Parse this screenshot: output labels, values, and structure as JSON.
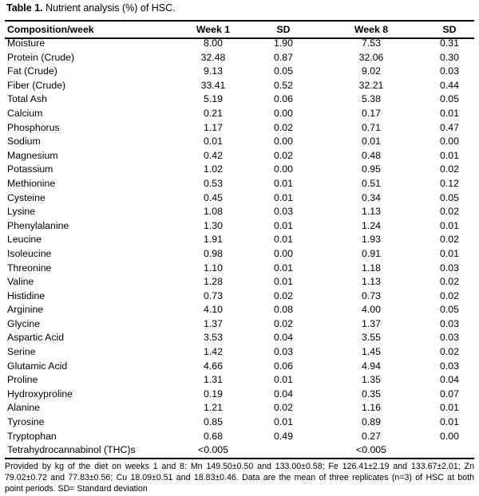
{
  "caption": {
    "label": "Table 1.",
    "text": " Nutrient analysis (%) of HSC."
  },
  "headers": [
    "Composition/week",
    "Week 1",
    "SD",
    "Week 8",
    "SD"
  ],
  "rows": [
    [
      "Moisture",
      "8.00",
      "1.90",
      "7.53",
      "0.31"
    ],
    [
      "Protein (Crude)",
      "32.48",
      "0.87",
      "32.06",
      "0.30"
    ],
    [
      "Fat (Crude)",
      "9.13",
      "0.05",
      "9.02",
      "0.03"
    ],
    [
      "Fiber (Crude)",
      "33.41",
      "0.52",
      "32.21",
      "0.44"
    ],
    [
      "Total Ash",
      "5.19",
      "0.06",
      "5.38",
      "0.05"
    ],
    [
      "Calcium",
      "0.21",
      "0.00",
      "0.17",
      "0.01"
    ],
    [
      "Phosphorus",
      "1.17",
      "0.02",
      "0.71",
      "0.47"
    ],
    [
      "Sodium",
      "0.01",
      "0.00",
      "0.01",
      "0.00"
    ],
    [
      "Magnesium",
      "0.42",
      "0.02",
      "0.48",
      "0.01"
    ],
    [
      "Potassium",
      "1.02",
      "0.00",
      "0.95",
      "0.02"
    ],
    [
      "Methionine",
      "0.53",
      "0.01",
      "0.51",
      "0.12"
    ],
    [
      "Cysteine",
      "0.45",
      "0.01",
      "0.34",
      "0.05"
    ],
    [
      "Lysine",
      "1.08",
      "0.03",
      "1.13",
      "0.02"
    ],
    [
      "Phenylalanine",
      "1.30",
      "0.01",
      "1.24",
      "0.01"
    ],
    [
      "Leucine",
      "1.91",
      "0.01",
      "1.93",
      "0.02"
    ],
    [
      "Isoleucine",
      "0.98",
      "0.00",
      "0.91",
      "0.01"
    ],
    [
      "Threonine",
      "1.10",
      "0.01",
      "1.18",
      "0.03"
    ],
    [
      "Valine",
      "1.28",
      "0.01",
      "1.13",
      "0.02"
    ],
    [
      "Histidine",
      "0.73",
      "0.02",
      "0.73",
      "0.02"
    ],
    [
      "Arginine",
      "4.10",
      "0.08",
      "4.00",
      "0.05"
    ],
    [
      "Glycine",
      "1.37",
      "0.02",
      "1.37",
      "0.03"
    ],
    [
      "Aspartic Acid",
      "3.53",
      "0.04",
      "3.55",
      "0.03"
    ],
    [
      "Serine",
      "1.42",
      "0.03",
      "1.45",
      "0.02"
    ],
    [
      "Glutamic Acid",
      "4.66",
      "0.06",
      "4.94",
      "0.03"
    ],
    [
      "Proline",
      "1.31",
      "0.01",
      "1.35",
      "0.04"
    ],
    [
      "Hydroxyproline",
      "0.19",
      "0.04",
      "0.35",
      "0.07"
    ],
    [
      "Alanine",
      "1.21",
      "0.02",
      "1.16",
      "0.01"
    ],
    [
      "Tyrosine",
      "0.85",
      "0.01",
      "0.89",
      "0.01"
    ],
    [
      "Tryptophan",
      "0.68",
      "0.49",
      "0.27",
      "0.00"
    ],
    [
      "Tetrahydrocannabinol (THC)s",
      "<0.005",
      "",
      "<0.005",
      ""
    ]
  ],
  "footnote": "Provided by kg of the diet on weeks 1 and 8: Mn 149.50±0.50 and 133.00±0.58; Fe 126.41±2.19 and 133.67±2.01; Zn 79.02±0.72 and 77.83±0.56; Cu 18.09±0.51 and 18.83±0.46. Data are the mean of three replicates (n=3) of HSC at both point periods. SD= Standard deviation"
}
